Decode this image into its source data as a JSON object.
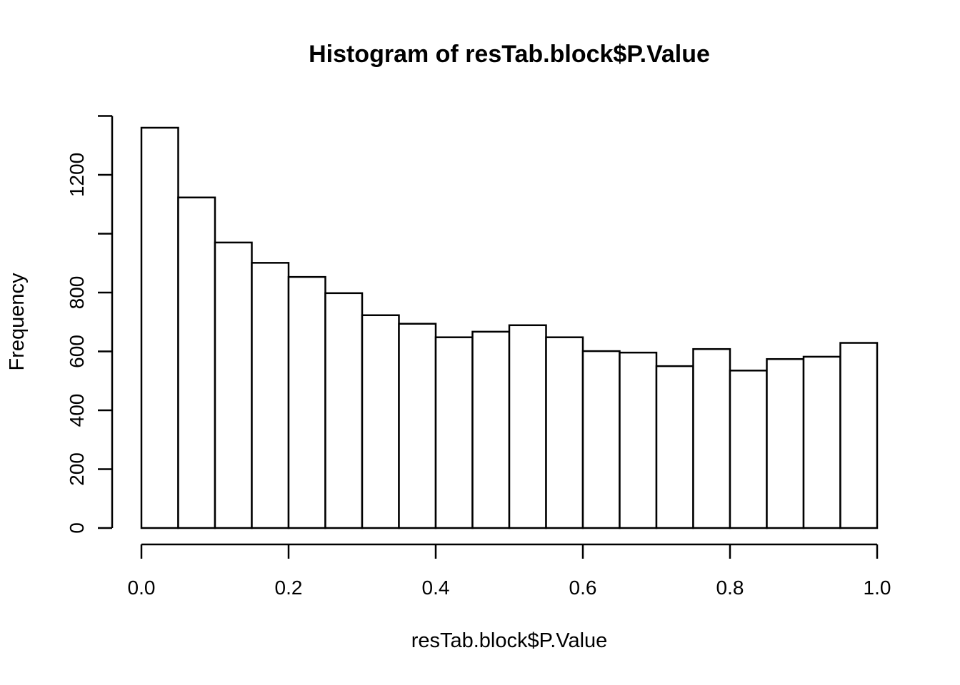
{
  "figure": {
    "title": "Histogram of resTab.block$P.Value",
    "xlabel": "resTab.block$P.Value",
    "ylabel": "Frequency",
    "background_color": "#ffffff",
    "foreground_color": "#000000"
  },
  "chart_data": {
    "type": "bar",
    "subtype": "histogram",
    "title": "Histogram of resTab.block$P.Value",
    "xlabel": "resTab.block$P.Value",
    "ylabel": "Frequency",
    "bin_width": 0.05,
    "bin_edges": [
      0.0,
      0.05,
      0.1,
      0.15,
      0.2,
      0.25,
      0.3,
      0.35,
      0.4,
      0.45,
      0.5,
      0.55,
      0.6,
      0.65,
      0.7,
      0.75,
      0.8,
      0.85,
      0.9,
      0.95,
      1.0
    ],
    "values": [
      1360,
      1123,
      970,
      901,
      853,
      798,
      723,
      694,
      648,
      667,
      689,
      648,
      601,
      596,
      550,
      608,
      535,
      574,
      582,
      629
    ],
    "xlim": [
      0,
      1
    ],
    "ylim": [
      0,
      1400
    ],
    "x_ticks": {
      "values": [
        0.0,
        0.2,
        0.4,
        0.6,
        0.8,
        1.0
      ],
      "labels": [
        "0.0",
        "0.2",
        "0.4",
        "0.6",
        "0.8",
        "1.0"
      ]
    },
    "y_ticks": {
      "values": [
        0,
        200,
        400,
        600,
        800,
        1000,
        1200,
        1400
      ],
      "labels": [
        "0",
        "200",
        "400",
        "600",
        "800",
        "",
        "1200",
        ""
      ]
    },
    "grid": false,
    "legend": false,
    "bar_fill": "#ffffff",
    "bar_stroke": "#000000",
    "axis_color": "#000000"
  }
}
